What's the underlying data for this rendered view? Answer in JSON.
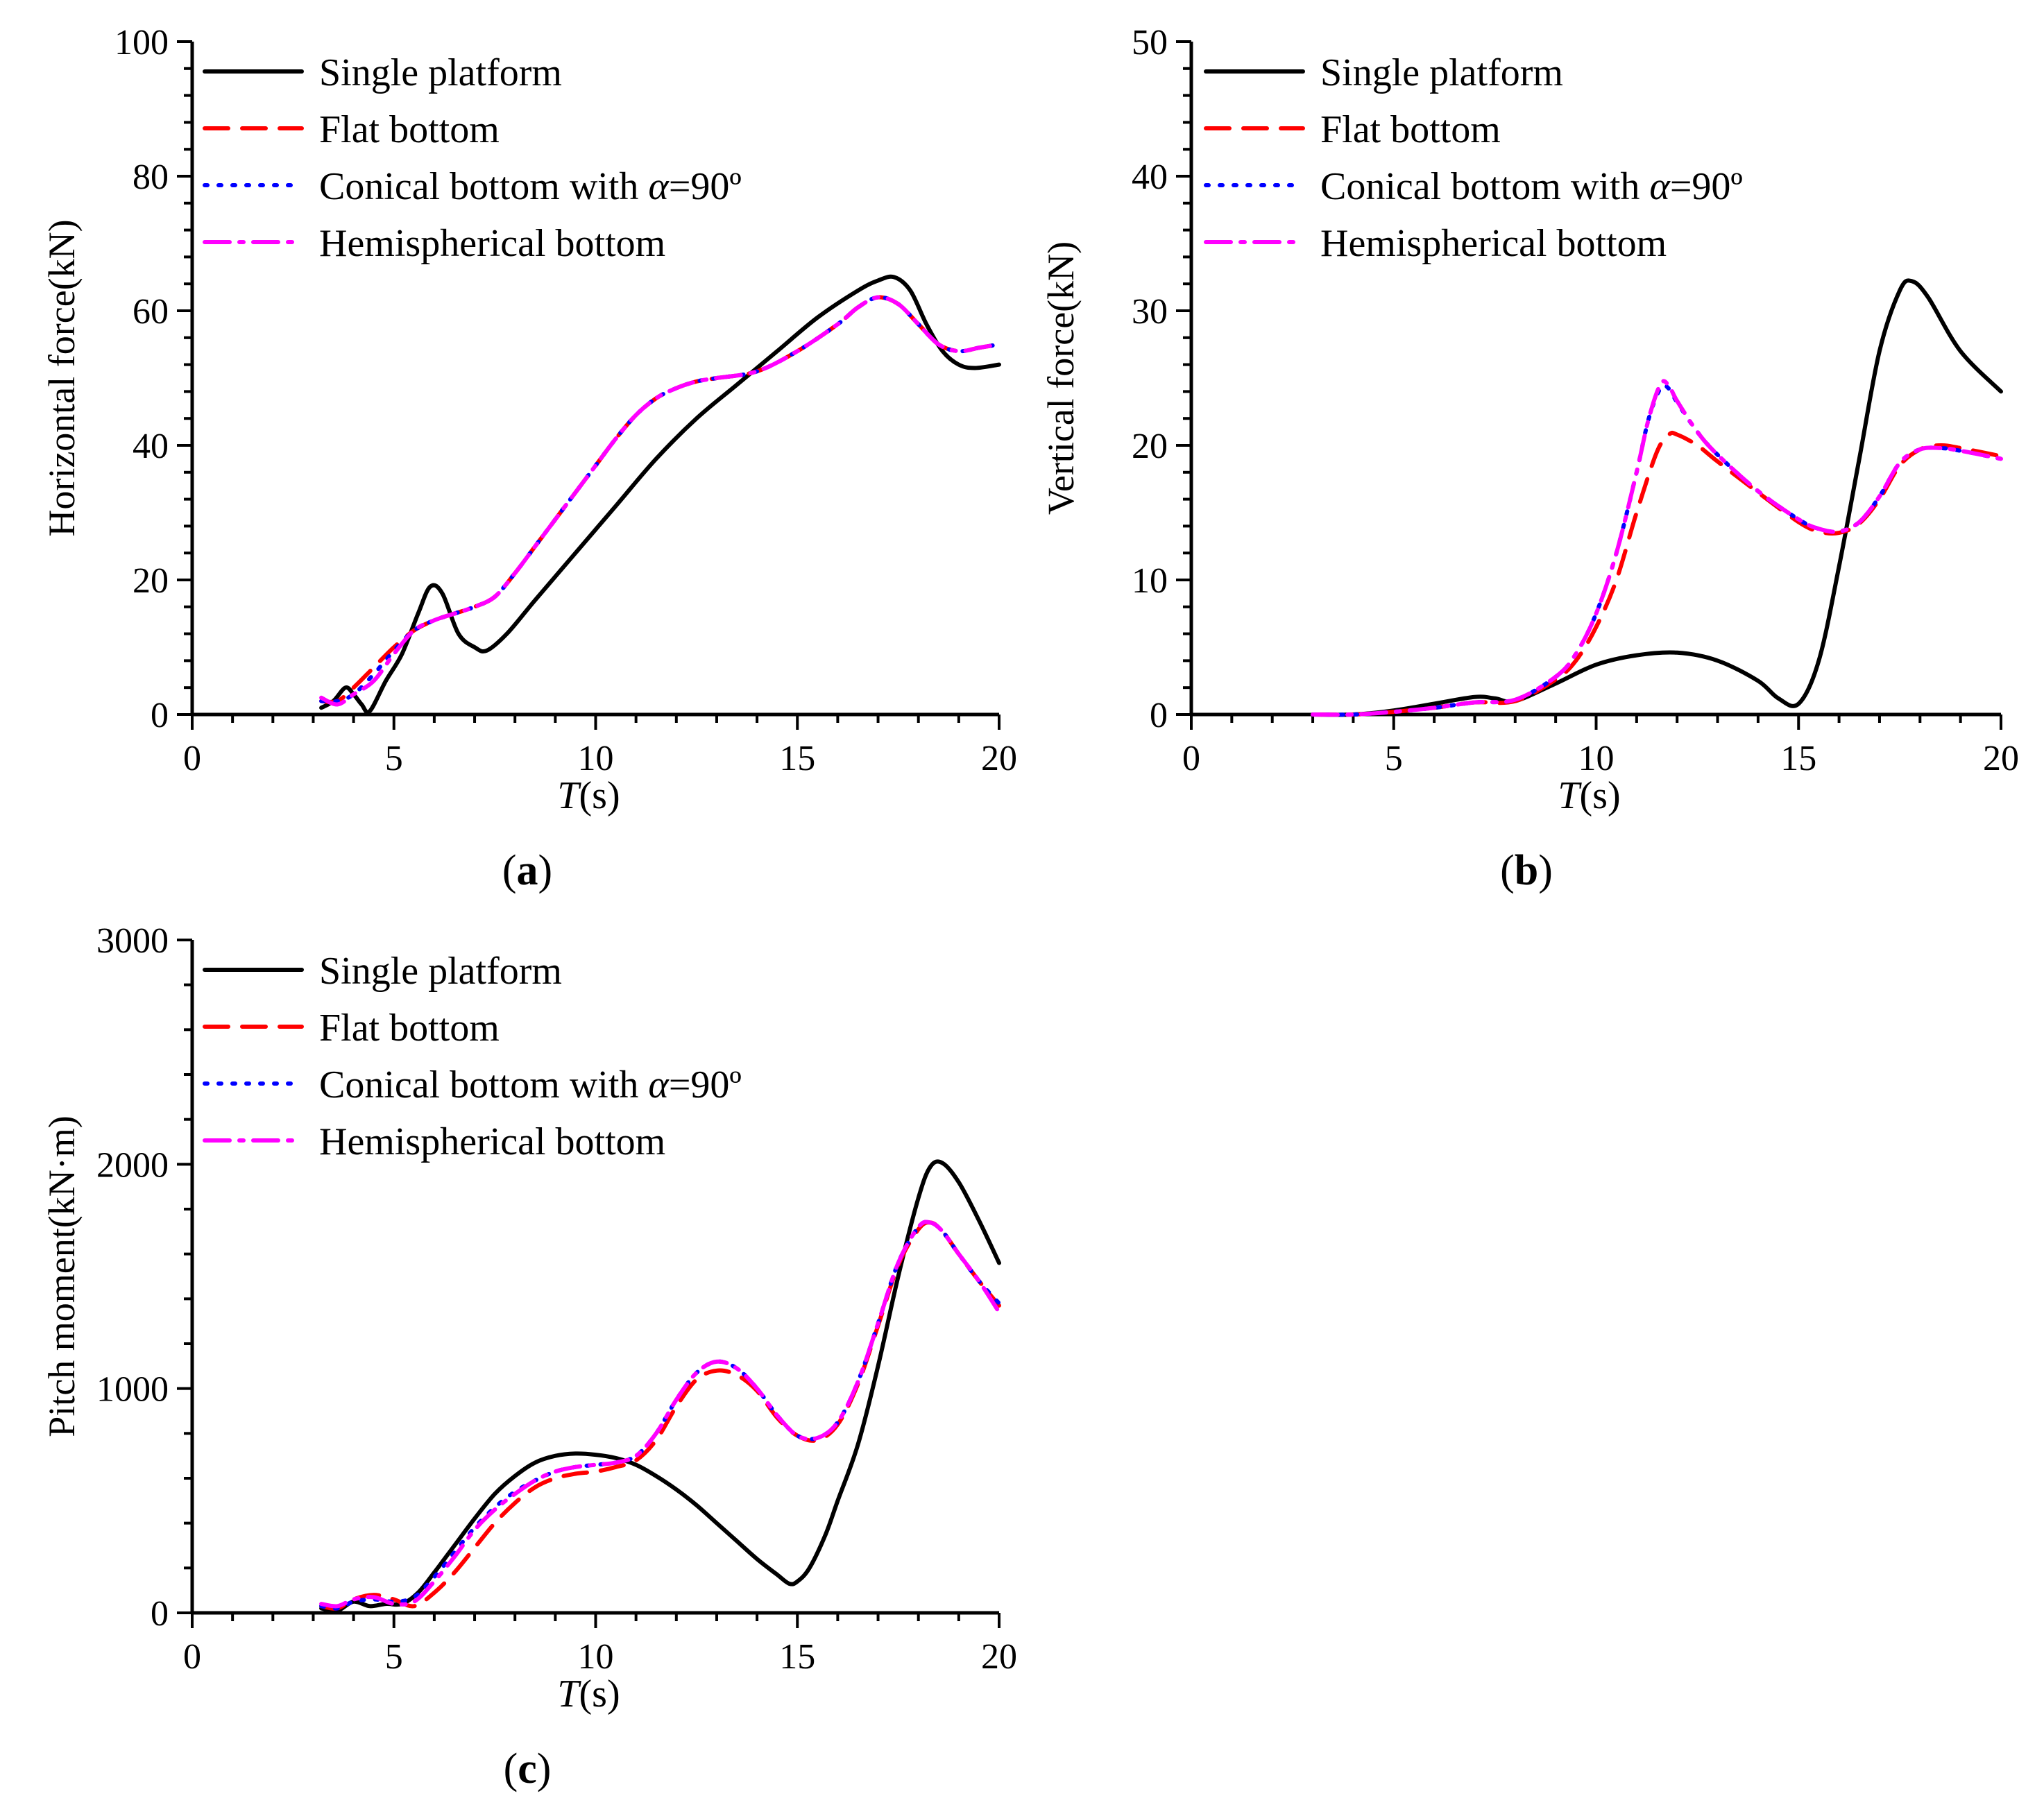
{
  "legend": [
    {
      "name": "Single platform",
      "color": "#000000",
      "dash": "solid"
    },
    {
      "name": "Flat bottom",
      "color": "#ff0000",
      "dash": "dash"
    },
    {
      "name": "Conical bottom with ",
      "math": "α",
      "suffix": "=90º",
      "color": "#0000ff",
      "dash": "dot"
    },
    {
      "name": "Hemispherical bottom",
      "color": "#ff00ff",
      "dash": "dashdot"
    }
  ],
  "chart_data": [
    {
      "type": "line",
      "panel_label": "(a)",
      "panel_letter": "a",
      "xlabel": "T(s)",
      "xlabel_italic": "T",
      "xlabel_rest": "(s)",
      "ylabel": "Horizontal force(kN)",
      "xlim": [
        0,
        20
      ],
      "ylim": [
        0,
        100
      ],
      "xticks": [
        0,
        5,
        10,
        15,
        20
      ],
      "yticks": [
        0,
        20,
        40,
        60,
        80,
        100
      ],
      "series": [
        {
          "name": "Single platform",
          "x": [
            3.2,
            3.5,
            3.8,
            4.0,
            4.2,
            4.4,
            4.8,
            5.2,
            5.6,
            5.9,
            6.2,
            6.6,
            7.0,
            7.3,
            7.8,
            8.5,
            9.5,
            10.5,
            11.5,
            12.5,
            13.5,
            14.5,
            15.5,
            16.5,
            17.0,
            17.4,
            17.8,
            18.2,
            18.6,
            19.0,
            19.4,
            20.0
          ],
          "y": [
            1,
            2,
            4,
            3,
            1.5,
            0.5,
            5,
            9,
            15,
            19,
            18,
            12,
            10,
            9.5,
            12,
            17,
            24,
            31,
            38,
            44,
            49,
            54,
            59,
            63,
            64.5,
            65,
            63,
            58,
            54,
            52,
            51.5,
            52
          ]
        },
        {
          "name": "Flat bottom",
          "x": [
            3.2,
            3.6,
            4.0,
            4.5,
            5.0,
            5.5,
            6.0,
            6.5,
            7.0,
            7.5,
            8.0,
            8.5,
            9.0,
            9.5,
            10.0,
            10.5,
            11.0,
            11.5,
            12.0,
            12.5,
            13.0,
            14.0,
            15.0,
            16.0,
            16.5,
            17.0,
            17.5,
            18.0,
            18.5,
            19.0,
            19.5,
            20.0
          ],
          "y": [
            2,
            2,
            4,
            7,
            10,
            12.5,
            14,
            15,
            16,
            17.5,
            21,
            25,
            29,
            33,
            37,
            41,
            44.5,
            47,
            48.5,
            49.5,
            50,
            51,
            54,
            58,
            60.5,
            62,
            61,
            58,
            55,
            54,
            54.5,
            55
          ]
        },
        {
          "name": "Conical bottom with α=90º",
          "x": [
            3.2,
            3.6,
            4.0,
            4.5,
            5.0,
            5.5,
            6.0,
            6.5,
            7.0,
            7.5,
            8.0,
            8.5,
            9.0,
            9.5,
            10.0,
            10.5,
            11.0,
            11.5,
            12.0,
            12.5,
            13.0,
            14.0,
            15.0,
            16.0,
            16.5,
            17.0,
            17.5,
            18.0,
            18.5,
            19.0,
            19.5,
            20.0
          ],
          "y": [
            2,
            2,
            3,
            6,
            9.5,
            12.5,
            14,
            15,
            16,
            17.5,
            21,
            25,
            29,
            33,
            37,
            41,
            44.5,
            47,
            48.5,
            49.5,
            50,
            51,
            54,
            58,
            60.5,
            62,
            61,
            58,
            55,
            54,
            54.5,
            55
          ]
        },
        {
          "name": "Hemispherical bottom",
          "x": [
            3.2,
            3.6,
            4.0,
            4.5,
            5.0,
            5.5,
            6.0,
            6.5,
            7.0,
            7.5,
            8.0,
            8.5,
            9.0,
            9.5,
            10.0,
            10.5,
            11.0,
            11.5,
            12.0,
            12.5,
            13.0,
            14.0,
            15.0,
            16.0,
            16.5,
            17.0,
            17.5,
            18.0,
            18.5,
            19.0,
            19.5,
            20.0
          ],
          "y": [
            2.5,
            1.5,
            3,
            5,
            9,
            12.5,
            14,
            15,
            16,
            17.5,
            21,
            25,
            29,
            33,
            37,
            41,
            44.5,
            47,
            48.5,
            49.5,
            50,
            51,
            54,
            58,
            60.5,
            62,
            61,
            58,
            55,
            54,
            54.5,
            55
          ]
        }
      ]
    },
    {
      "type": "line",
      "panel_label": "(b)",
      "panel_letter": "b",
      "xlabel": "T(s)",
      "xlabel_italic": "T",
      "xlabel_rest": "(s)",
      "ylabel": "Vertical force(kN)",
      "xlim": [
        0,
        20
      ],
      "ylim": [
        0,
        50
      ],
      "xticks": [
        0,
        5,
        10,
        15,
        20
      ],
      "yticks": [
        0,
        10,
        20,
        30,
        40,
        50
      ],
      "series": [
        {
          "name": "Single platform",
          "x": [
            3.0,
            4.0,
            5.0,
            6.0,
            7.0,
            7.5,
            8.0,
            9.0,
            10.0,
            11.0,
            12.0,
            13.0,
            14.0,
            14.5,
            15.0,
            15.5,
            16.0,
            16.5,
            17.0,
            17.5,
            17.8,
            18.2,
            19.0,
            20.0
          ],
          "y": [
            0,
            0,
            0.3,
            0.8,
            1.3,
            1.2,
            1.0,
            2.3,
            3.7,
            4.4,
            4.6,
            4.0,
            2.5,
            1.2,
            0.8,
            4,
            11,
            19,
            27,
            31.5,
            32.2,
            31,
            27,
            24
          ]
        },
        {
          "name": "Flat bottom",
          "x": [
            3.0,
            4.0,
            5.0,
            6.0,
            7.0,
            8.0,
            9.0,
            9.5,
            10.0,
            10.5,
            11.0,
            11.5,
            11.8,
            12.0,
            12.5,
            13.0,
            14.0,
            15.0,
            15.5,
            16.0,
            16.5,
            17.0,
            17.5,
            18.0,
            18.5,
            19.0,
            20.0
          ],
          "y": [
            0,
            0,
            0.2,
            0.5,
            0.9,
            1.0,
            2.6,
            4,
            6.5,
            10,
            15,
            19.5,
            20.8,
            20.8,
            20,
            18.8,
            16.5,
            14.3,
            13.6,
            13.5,
            14.2,
            16,
            18.5,
            19.7,
            20,
            19.8,
            19.2
          ]
        },
        {
          "name": "Conical bottom with α=90º",
          "x": [
            3.0,
            4.0,
            5.0,
            6.0,
            7.0,
            8.0,
            9.0,
            9.5,
            10.0,
            10.5,
            11.0,
            11.3,
            11.6,
            11.8,
            12.0,
            12.5,
            13.0,
            14.0,
            15.0,
            15.5,
            16.0,
            16.5,
            17.0,
            17.5,
            18.0,
            18.5,
            19.0,
            20.0
          ],
          "y": [
            0,
            0,
            0.2,
            0.5,
            0.9,
            1.1,
            2.8,
            4.5,
            7.5,
            12,
            18,
            22,
            24.3,
            24.2,
            23.2,
            21,
            19.3,
            16.6,
            14.5,
            13.8,
            13.6,
            14.3,
            16.2,
            18.7,
            19.7,
            19.8,
            19.6,
            19
          ]
        },
        {
          "name": "Hemispherical bottom",
          "x": [
            3.0,
            4.0,
            5.0,
            6.0,
            7.0,
            8.0,
            9.0,
            9.5,
            10.0,
            10.5,
            11.0,
            11.3,
            11.6,
            11.8,
            12.0,
            12.5,
            13.0,
            14.0,
            15.0,
            15.5,
            16.0,
            16.5,
            17.0,
            17.5,
            18.0,
            18.5,
            19.0,
            20.0
          ],
          "y": [
            0,
            0,
            0.2,
            0.5,
            0.9,
            1.1,
            2.8,
            4.5,
            7.5,
            12,
            18,
            22,
            24.6,
            24.4,
            23.3,
            21,
            19.3,
            16.6,
            14.5,
            13.8,
            13.6,
            14.3,
            16.2,
            18.7,
            19.7,
            19.8,
            19.6,
            19
          ]
        }
      ]
    },
    {
      "type": "line",
      "panel_label": "(c)",
      "panel_letter": "c",
      "xlabel": "T(s)",
      "xlabel_italic": "T",
      "xlabel_rest": "(s)",
      "ylabel": "Pitch moment(kN·m)",
      "xlim": [
        0,
        20
      ],
      "ylim": [
        0,
        3000
      ],
      "xticks": [
        0,
        5,
        10,
        15,
        20
      ],
      "yticks": [
        0,
        1000,
        2000,
        3000
      ],
      "series": [
        {
          "name": "Single platform",
          "x": [
            3.2,
            3.6,
            4.0,
            4.4,
            4.8,
            5.2,
            5.6,
            6.0,
            6.5,
            7.0,
            7.5,
            8.0,
            8.5,
            9.0,
            9.5,
            10.0,
            10.5,
            11.0,
            11.5,
            12.0,
            12.5,
            13.0,
            13.5,
            14.0,
            14.5,
            14.8,
            15.0,
            15.3,
            15.7,
            16.0,
            16.5,
            17.0,
            17.5,
            18.0,
            18.3,
            18.6,
            19.0,
            19.5,
            20.0
          ],
          "y": [
            20,
            10,
            50,
            30,
            40,
            40,
            90,
            180,
            300,
            420,
            530,
            610,
            670,
            700,
            710,
            705,
            690,
            660,
            610,
            550,
            480,
            400,
            320,
            240,
            170,
            130,
            140,
            200,
            350,
            500,
            750,
            1100,
            1500,
            1850,
            1990,
            2005,
            1920,
            1750,
            1560
          ]
        },
        {
          "name": "Flat bottom",
          "x": [
            3.2,
            3.6,
            4.0,
            4.5,
            5.0,
            5.5,
            6.0,
            6.5,
            7.0,
            7.5,
            8.0,
            8.5,
            9.0,
            9.5,
            10.0,
            10.5,
            11.0,
            11.5,
            12.0,
            12.5,
            13.0,
            13.5,
            14.0,
            14.5,
            15.0,
            15.5,
            16.0,
            16.5,
            17.0,
            17.5,
            18.0,
            18.3,
            18.6,
            19.0,
            19.5,
            20.0
          ],
          "y": [
            30,
            20,
            60,
            80,
            60,
            30,
            90,
            180,
            290,
            400,
            490,
            560,
            600,
            620,
            630,
            650,
            680,
            770,
            920,
            1040,
            1080,
            1060,
            990,
            870,
            790,
            770,
            840,
            1020,
            1280,
            1550,
            1710,
            1740,
            1700,
            1600,
            1480,
            1370
          ]
        },
        {
          "name": "Conical bottom with α=90º",
          "x": [
            3.2,
            3.6,
            4.0,
            4.5,
            5.0,
            5.5,
            6.0,
            6.5,
            7.0,
            7.5,
            8.0,
            8.5,
            9.0,
            9.5,
            10.0,
            10.5,
            11.0,
            11.5,
            12.0,
            12.5,
            13.0,
            13.5,
            14.0,
            14.5,
            15.0,
            15.5,
            16.0,
            16.5,
            17.0,
            17.5,
            18.0,
            18.3,
            18.6,
            19.0,
            19.5,
            20.0
          ],
          "y": [
            30,
            20,
            50,
            60,
            50,
            70,
            160,
            270,
            380,
            470,
            540,
            590,
            630,
            650,
            660,
            670,
            700,
            800,
            950,
            1070,
            1120,
            1090,
            1000,
            880,
            790,
            780,
            850,
            1030,
            1290,
            1560,
            1720,
            1740,
            1700,
            1600,
            1480,
            1380
          ]
        },
        {
          "name": "Hemispherical bottom",
          "x": [
            3.2,
            3.6,
            4.0,
            4.5,
            5.0,
            5.5,
            6.0,
            6.5,
            7.0,
            7.5,
            8.0,
            8.5,
            9.0,
            9.5,
            10.0,
            10.5,
            11.0,
            11.5,
            12.0,
            12.5,
            13.0,
            13.5,
            14.0,
            14.5,
            15.0,
            15.5,
            16.0,
            16.5,
            17.0,
            17.5,
            18.0,
            18.3,
            18.6,
            19.0,
            19.5,
            20.0
          ],
          "y": [
            40,
            30,
            60,
            70,
            40,
            50,
            140,
            250,
            370,
            460,
            530,
            590,
            630,
            650,
            660,
            670,
            700,
            800,
            950,
            1070,
            1120,
            1090,
            1000,
            880,
            790,
            780,
            850,
            1030,
            1290,
            1560,
            1720,
            1740,
            1700,
            1600,
            1480,
            1340
          ]
        }
      ]
    }
  ]
}
